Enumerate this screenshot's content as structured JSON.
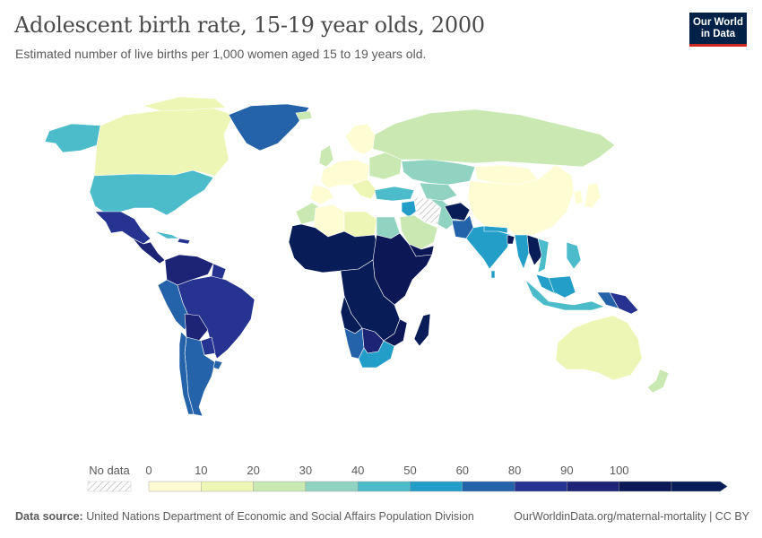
{
  "header": {
    "title": "Adolescent birth rate, 15-19 year olds, 2000",
    "subtitle": "Estimated number of live births per 1,000 women aged 15 to 19 years old."
  },
  "logo": {
    "line1": "Our World",
    "line2": "in Data"
  },
  "legend": {
    "no_data_label": "No data",
    "ticks": [
      "0",
      "10",
      "20",
      "30",
      "40",
      "50",
      "60",
      "80",
      "90",
      "100"
    ],
    "colors": [
      "#fefcd3",
      "#eef6b5",
      "#c9e8b2",
      "#8fd3c0",
      "#4cbcca",
      "#239ec8",
      "#2462a9",
      "#263391",
      "#1d2475",
      "#0c1855",
      "#081d58"
    ]
  },
  "footer": {
    "source_label": "Data source:",
    "source_text": "United Nations Department of Economic and Social Affairs Population Division",
    "right_text": "OurWorldinData.org/maternal-mortality | CC BY"
  },
  "chart_data": {
    "type": "choropleth",
    "title": "Adolescent birth rate, 15-19 year olds, 2000",
    "unit": "live births per 1,000 women aged 15-19",
    "bins": [
      0,
      10,
      20,
      30,
      40,
      50,
      60,
      80,
      90,
      100
    ],
    "regions": [
      {
        "name": "Canada",
        "bin": "10-20"
      },
      {
        "name": "United States",
        "bin": "40-50"
      },
      {
        "name": "Mexico",
        "bin": "80-90"
      },
      {
        "name": "Central America",
        "bin": "90-100"
      },
      {
        "name": "Greenland",
        "bin": "60-80"
      },
      {
        "name": "Alaska",
        "bin": "40-50"
      },
      {
        "name": "Brazil",
        "bin": "80-90"
      },
      {
        "name": "Venezuela/Colombia",
        "bin": "90-100"
      },
      {
        "name": "Peru",
        "bin": "60-80"
      },
      {
        "name": "Argentina",
        "bin": "60-80"
      },
      {
        "name": "Chile",
        "bin": "60-80"
      },
      {
        "name": "Bolivia/Paraguay",
        "bin": "80-90"
      },
      {
        "name": "Europe (west)",
        "bin": "0-10"
      },
      {
        "name": "Eastern Europe",
        "bin": "20-30"
      },
      {
        "name": "Russia",
        "bin": "20-30"
      },
      {
        "name": "Kazakhstan",
        "bin": "30-40"
      },
      {
        "name": "China",
        "bin": "0-10"
      },
      {
        "name": "India",
        "bin": "50-60"
      },
      {
        "name": "Pakistan",
        "bin": "60-80"
      },
      {
        "name": "Afghanistan",
        "bin": "100+"
      },
      {
        "name": "Saudi Arabia",
        "bin": "20-30"
      },
      {
        "name": "Iran",
        "bin": "30-40"
      },
      {
        "name": "Turkey",
        "bin": "40-50"
      },
      {
        "name": "Egypt",
        "bin": "30-40"
      },
      {
        "name": "Libya",
        "bin": "0-10"
      },
      {
        "name": "Algeria",
        "bin": "0-10"
      },
      {
        "name": "Morocco",
        "bin": "20-30"
      },
      {
        "name": "Sub-Saharan Africa",
        "bin": "100+"
      },
      {
        "name": "Angola",
        "bin": "100+"
      },
      {
        "name": "Namibia",
        "bin": "60-80"
      },
      {
        "name": "South Africa",
        "bin": "50-60"
      },
      {
        "name": "Madagascar",
        "bin": "100+"
      },
      {
        "name": "Southeast Asia mainland",
        "bin": "40-50"
      },
      {
        "name": "Laos",
        "bin": "100+"
      },
      {
        "name": "Indonesia",
        "bin": "40-50"
      },
      {
        "name": "Philippines",
        "bin": "40-50"
      },
      {
        "name": "Papua New Guinea",
        "bin": "60-80"
      },
      {
        "name": "Australia",
        "bin": "10-20"
      },
      {
        "name": "New Zealand",
        "bin": "20-30"
      },
      {
        "name": "Japan",
        "bin": "0-10"
      },
      {
        "name": "Mongolia",
        "bin": "0-10"
      },
      {
        "name": "Iraq/Syria",
        "bin": "no data"
      }
    ]
  }
}
